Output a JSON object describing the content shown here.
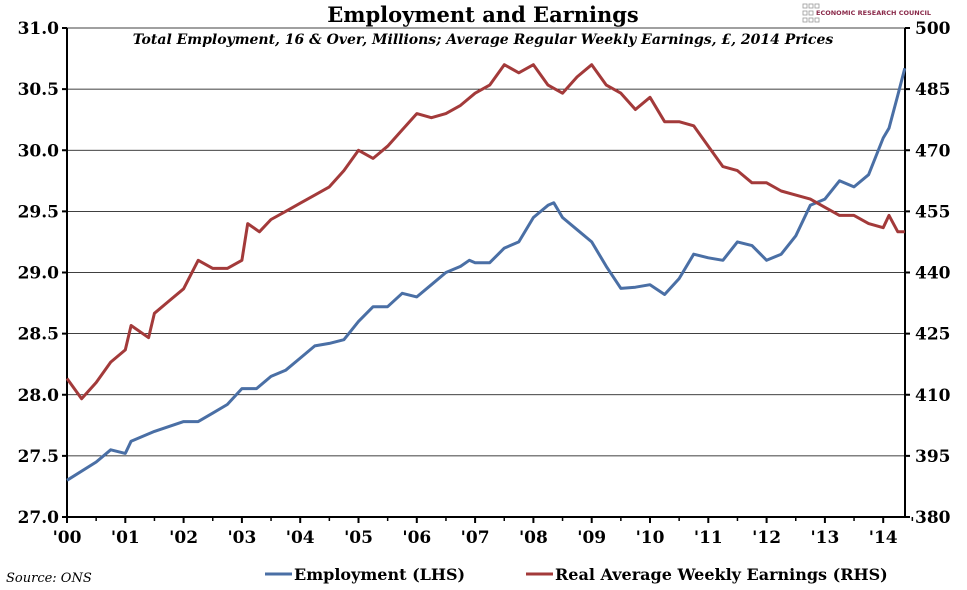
{
  "chart_data": {
    "type": "line",
    "title": "Employment and Earnings",
    "subtitle": "Total Employment, 16 & Over, Millions; Average Regular Weekly Earnings, £, 2014 Prices",
    "source": "Source: ONS",
    "logo_text": "ECONOMIC RESEARCH COUNCIL",
    "x_ticks": [
      "'00",
      "'01",
      "'02",
      "'03",
      "'04",
      "'05",
      "'06",
      "'07",
      "'08",
      "'09",
      "'10",
      "'11",
      "'12",
      "'13",
      "'14"
    ],
    "xlim": [
      2000,
      2014.37
    ],
    "y_left": {
      "lim": [
        27.0,
        31.0
      ],
      "ticks": [
        "27.0",
        "27.5",
        "28.0",
        "28.5",
        "29.0",
        "29.5",
        "30.0",
        "30.5",
        "31.0"
      ]
    },
    "y_right": {
      "lim": [
        380,
        500
      ],
      "ticks": [
        "380",
        "395",
        "410",
        "425",
        "440",
        "455",
        "470",
        "485",
        "500"
      ]
    },
    "grid": true,
    "legend": "bottom",
    "series": [
      {
        "name": "Employment (LHS)",
        "axis": "left",
        "color": "#4a6fa5",
        "x": [
          2000,
          2000.5,
          2000.75,
          2001,
          2001.1,
          2001.5,
          2002,
          2002.25,
          2002.5,
          2002.75,
          2003,
          2003.25,
          2003.5,
          2003.75,
          2004,
          2004.25,
          2004.5,
          2004.75,
          2005,
          2005.25,
          2005.5,
          2005.75,
          2006,
          2006.25,
          2006.5,
          2006.75,
          2006.9,
          2007,
          2007.25,
          2007.5,
          2007.75,
          2008,
          2008.25,
          2008.35,
          2008.5,
          2008.75,
          2009,
          2009.25,
          2009.5,
          2009.75,
          2010,
          2010.25,
          2010.5,
          2010.75,
          2011,
          2011.25,
          2011.5,
          2011.75,
          2012,
          2012.25,
          2012.5,
          2012.75,
          2013,
          2013.25,
          2013.5,
          2013.75,
          2014,
          2014.1,
          2014.25,
          2014.37
        ],
        "y": [
          27.3,
          27.45,
          27.55,
          27.52,
          27.62,
          27.7,
          27.78,
          27.78,
          27.85,
          27.92,
          28.05,
          28.05,
          28.15,
          28.2,
          28.3,
          28.4,
          28.42,
          28.45,
          28.6,
          28.72,
          28.72,
          28.83,
          28.8,
          28.9,
          29.0,
          29.05,
          29.1,
          29.08,
          29.08,
          29.2,
          29.25,
          29.45,
          29.55,
          29.57,
          29.45,
          29.35,
          29.25,
          29.05,
          28.87,
          28.88,
          28.9,
          28.82,
          28.95,
          29.15,
          29.12,
          29.1,
          29.25,
          29.22,
          29.1,
          29.15,
          29.3,
          29.55,
          29.6,
          29.75,
          29.7,
          29.8,
          30.1,
          30.18,
          30.45,
          30.67
        ]
      },
      {
        "name": "Real Average Weekly Earnings (RHS)",
        "axis": "right",
        "color": "#a33a3a",
        "x": [
          2000,
          2000.25,
          2000.5,
          2000.75,
          2001,
          2001.1,
          2001.4,
          2001.5,
          2001.75,
          2002,
          2002.25,
          2002.5,
          2002.75,
          2003,
          2003.1,
          2003.3,
          2003.5,
          2003.75,
          2004,
          2004.25,
          2004.5,
          2004.75,
          2005,
          2005.25,
          2005.5,
          2005.75,
          2006,
          2006.25,
          2006.5,
          2006.75,
          2007,
          2007.25,
          2007.5,
          2007.75,
          2008,
          2008.25,
          2008.5,
          2008.75,
          2009,
          2009.25,
          2009.5,
          2009.75,
          2010,
          2010.25,
          2010.5,
          2010.75,
          2011,
          2011.25,
          2011.5,
          2011.75,
          2012,
          2012.25,
          2012.5,
          2012.75,
          2013,
          2013.25,
          2013.5,
          2013.75,
          2014,
          2014.1,
          2014.25,
          2014.37
        ],
        "y": [
          414,
          409,
          413,
          418,
          421,
          427,
          424,
          430,
          433,
          436,
          443,
          441,
          441,
          443,
          452,
          450,
          453,
          455,
          457,
          459,
          461,
          465,
          470,
          468,
          471,
          475,
          479,
          478,
          479,
          481,
          484,
          486,
          491,
          489,
          491,
          486,
          484,
          488,
          491,
          486,
          484,
          480,
          483,
          477,
          477,
          476,
          471,
          466,
          465,
          462,
          462,
          460,
          459,
          458,
          456,
          454,
          454,
          452,
          451,
          454,
          450,
          450
        ]
      }
    ]
  }
}
